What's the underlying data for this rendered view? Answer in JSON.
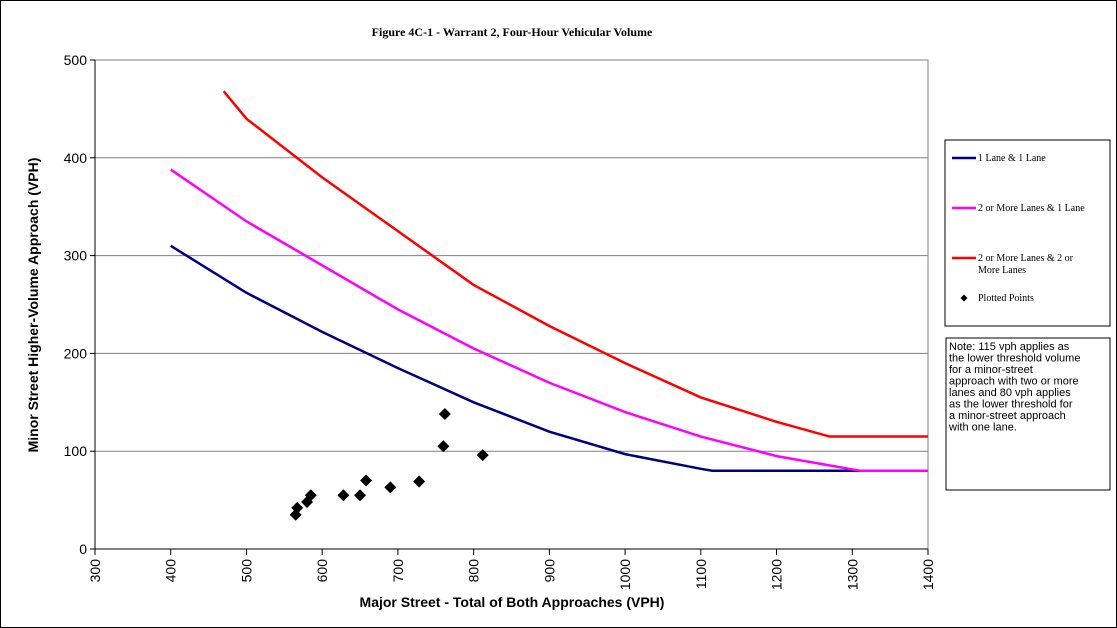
{
  "chart_data": {
    "type": "line",
    "title": "Figure 4C-1 - Warrant 2, Four-Hour Vehicular Volume",
    "x_label": "Major Street - Total of Both Approaches (VPH)",
    "y_label": "Minor Street Higher-Volume Approach (VPH)",
    "xlim": [
      300,
      1400
    ],
    "xticks": [
      300,
      400,
      500,
      600,
      700,
      800,
      900,
      1000,
      1100,
      1200,
      1300,
      1400
    ],
    "ylim": [
      0,
      500
    ],
    "yticks": [
      0,
      100,
      200,
      300,
      400,
      500
    ],
    "grid": true,
    "legend": "right",
    "note": [
      "Note: 115 vph applies as",
      "the lower threshold volume",
      "for a minor-street",
      "approach with two or more",
      "lanes and 80 vph applies",
      "as the lower threshold for",
      "a minor-street approach",
      "with one lane."
    ],
    "series": [
      {
        "name": "1 Lane & 1 Lane",
        "type": "line",
        "color": "#000080",
        "x": [
          400,
          500,
          600,
          700,
          800,
          900,
          1000,
          1100,
          1115,
          1400
        ],
        "values": [
          310,
          262,
          222,
          185,
          150,
          120,
          97,
          82,
          80,
          80
        ]
      },
      {
        "name": "2 or More Lanes & 1 Lane",
        "type": "line",
        "color": "#ff00ff",
        "x": [
          400,
          500,
          600,
          700,
          800,
          900,
          1000,
          1100,
          1200,
          1310,
          1400
        ],
        "values": [
          388,
          335,
          290,
          245,
          205,
          170,
          140,
          115,
          95,
          80,
          80
        ]
      },
      {
        "name": "2 or More Lanes & 2 or More Lanes",
        "type": "line",
        "color": "#ff0000",
        "x": [
          470,
          500,
          600,
          700,
          800,
          900,
          1000,
          1100,
          1200,
          1270,
          1400
        ],
        "values": [
          468,
          440,
          380,
          325,
          270,
          228,
          190,
          155,
          130,
          115,
          115
        ]
      },
      {
        "name": "Plotted Points",
        "type": "scatter",
        "color": "#000000",
        "x": [
          565,
          567,
          580,
          585,
          628,
          650,
          658,
          690,
          728,
          760,
          762,
          812
        ],
        "values": [
          35,
          42,
          48,
          55,
          55,
          55,
          70,
          63,
          69,
          105,
          138,
          96
        ]
      }
    ]
  }
}
